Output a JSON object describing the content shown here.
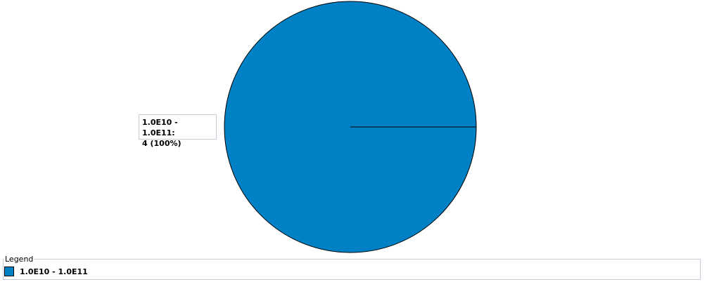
{
  "chart_data": {
    "type": "pie",
    "slices": [
      {
        "label": "1.0E10 - 1.0E11",
        "value": 4,
        "percent": "100%",
        "color": "#0081C5",
        "data_label_line1": "1.0E10 - 1.0E11:",
        "data_label_line2": "4 (100%)"
      }
    ],
    "legend": {
      "title": "Legend",
      "placement": "bottom"
    }
  }
}
